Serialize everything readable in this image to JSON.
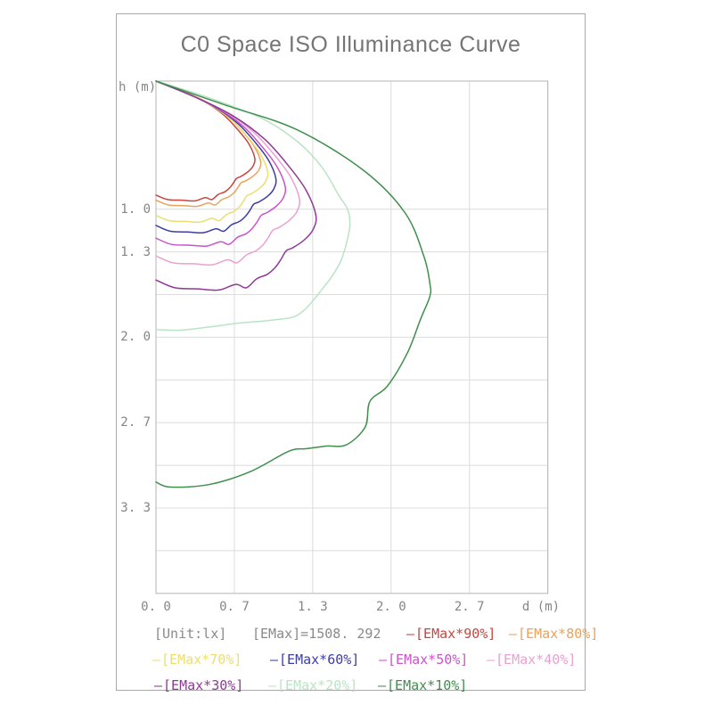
{
  "page": {
    "title": "C0 Space ISO Illuminance Curve"
  },
  "axes": {
    "x_label": "d (m)",
    "y_label": "h (m)",
    "x_ticks": [
      {
        "d": 0,
        "label": "0. 0"
      },
      {
        "d": 0.6667,
        "label": "0. 7"
      },
      {
        "d": 1.3333,
        "label": "1. 3"
      },
      {
        "d": 2,
        "label": "2. 0"
      },
      {
        "d": 2.6667,
        "label": "2. 7"
      }
    ],
    "y_ticks": [
      {
        "h": 1,
        "label": "1. 0"
      },
      {
        "h": 1.3333,
        "label": "1. 3"
      },
      {
        "h": 2,
        "label": "2. 0"
      },
      {
        "h": 2.6667,
        "label": "2. 7"
      },
      {
        "h": 3.3333,
        "label": "3. 3"
      }
    ]
  },
  "legend": {
    "unit_label": "[Unit:lx]",
    "emax_label": "[EMax]=1508. 292"
  },
  "colors": {
    "grid": "#dcdcdc",
    "plot_border": "#b5b5b5",
    "frame_border": "#a9a9a9",
    "text": "#858585",
    "title": "#757575"
  },
  "chart_data": {
    "type": "line",
    "subtype": "iso-illuminance-contours",
    "title": "C0 Space ISO Illuminance Curve",
    "xlabel": "d (m)",
    "ylabel": "h (m)",
    "unit": "lx",
    "emax_lux": 1508.292,
    "x_range": [
      0,
      3.3333
    ],
    "y_range": [
      0,
      4.0
    ],
    "y_inverted": true,
    "grid": true,
    "x_gridlines": [
      0,
      0.6667,
      1.3333,
      2,
      2.6667,
      3.3333
    ],
    "y_gridlines": [
      1,
      1.3333,
      1.6667,
      2,
      2.3333,
      2.6667,
      3,
      3.3333,
      3.6667
    ],
    "legend_position": "bottom",
    "curves": [
      {
        "name": "[EMax*90%]",
        "percent": 90,
        "color": "#c8453f",
        "points": [
          [
            0,
            0
          ],
          [
            0.202,
            0.07
          ],
          [
            0.403,
            0.155
          ],
          [
            0.571,
            0.26
          ],
          [
            0.697,
            0.38
          ],
          [
            0.79,
            0.49
          ],
          [
            0.84,
            0.6
          ],
          [
            0.825,
            0.665
          ],
          [
            0.78,
            0.71
          ],
          [
            0.72,
            0.745
          ],
          [
            0.685,
            0.76
          ],
          [
            0.655,
            0.8
          ],
          [
            0.625,
            0.835
          ],
          [
            0.585,
            0.865
          ],
          [
            0.53,
            0.885
          ],
          [
            0.475,
            0.925
          ],
          [
            0.42,
            0.91
          ],
          [
            0.33,
            0.935
          ],
          [
            0.22,
            0.93
          ],
          [
            0.1,
            0.925
          ],
          [
            0,
            0.89
          ]
        ]
      },
      {
        "name": "[EMax*80%]",
        "percent": 80,
        "color": "#e9a35b",
        "points": [
          [
            0,
            0
          ],
          [
            0.214,
            0.074
          ],
          [
            0.427,
            0.162
          ],
          [
            0.605,
            0.272
          ],
          [
            0.739,
            0.397
          ],
          [
            0.837,
            0.512
          ],
          [
            0.89,
            0.627
          ],
          [
            0.874,
            0.695
          ],
          [
            0.827,
            0.742
          ],
          [
            0.763,
            0.779
          ],
          [
            0.725,
            0.794
          ],
          [
            0.694,
            0.836
          ],
          [
            0.662,
            0.873
          ],
          [
            0.619,
            0.904
          ],
          [
            0.562,
            0.925
          ],
          [
            0.503,
            0.967
          ],
          [
            0.445,
            0.951
          ],
          [
            0.35,
            0.978
          ],
          [
            0.233,
            0.972
          ],
          [
            0.106,
            0.967
          ],
          [
            0,
            0.93
          ]
        ]
      },
      {
        "name": "[EMax*70%]",
        "percent": 70,
        "color": "#ecde72",
        "points": [
          [
            0,
            0
          ],
          [
            0.228,
            0.083
          ],
          [
            0.456,
            0.182
          ],
          [
            0.646,
            0.306
          ],
          [
            0.789,
            0.447
          ],
          [
            0.893,
            0.577
          ],
          [
            0.95,
            0.707
          ],
          [
            0.933,
            0.783
          ],
          [
            0.882,
            0.836
          ],
          [
            0.814,
            0.878
          ],
          [
            0.774,
            0.895
          ],
          [
            0.741,
            0.942
          ],
          [
            0.707,
            0.984
          ],
          [
            0.661,
            1.019
          ],
          [
            0.599,
            1.042
          ],
          [
            0.537,
            1.09
          ],
          [
            0.475,
            1.072
          ],
          [
            0.373,
            1.101
          ],
          [
            0.249,
            1.095
          ],
          [
            0.113,
            1.09
          ],
          [
            0,
            1.048
          ]
        ]
      },
      {
        "name": "[EMax*60%]",
        "percent": 60,
        "color": "#3d3da3",
        "points": [
          [
            0,
            0
          ],
          [
            0.245,
            0.089
          ],
          [
            0.49,
            0.196
          ],
          [
            0.694,
            0.329
          ],
          [
            0.847,
            0.481
          ],
          [
            0.959,
            0.62
          ],
          [
            1.02,
            0.76
          ],
          [
            1.002,
            0.842
          ],
          [
            0.948,
            0.9
          ],
          [
            0.874,
            0.944
          ],
          [
            0.831,
            0.962
          ],
          [
            0.796,
            1.013
          ],
          [
            0.759,
            1.058
          ],
          [
            0.71,
            1.096
          ],
          [
            0.644,
            1.121
          ],
          [
            0.576,
            1.172
          ],
          [
            0.51,
            1.153
          ],
          [
            0.401,
            1.184
          ],
          [
            0.267,
            1.178
          ],
          [
            0.121,
            1.172
          ],
          [
            0,
            1.127
          ]
        ]
      },
      {
        "name": "[EMax*50%]",
        "percent": 50,
        "color": "#cb54cb",
        "points": [
          [
            0,
            0
          ],
          [
            0.264,
            0.097
          ],
          [
            0.528,
            0.213
          ],
          [
            0.748,
            0.358
          ],
          [
            0.913,
            0.523
          ],
          [
            1.034,
            0.675
          ],
          [
            1.1,
            0.827
          ],
          [
            1.08,
            0.916
          ],
          [
            1.022,
            0.978
          ],
          [
            0.943,
            1.027
          ],
          [
            0.897,
            1.047
          ],
          [
            0.858,
            1.102
          ],
          [
            0.818,
            1.151
          ],
          [
            0.766,
            1.192
          ],
          [
            0.694,
            1.219
          ],
          [
            0.622,
            1.275
          ],
          [
            0.55,
            1.254
          ],
          [
            0.432,
            1.288
          ],
          [
            0.288,
            1.281
          ],
          [
            0.131,
            1.275
          ],
          [
            0,
            1.226
          ]
        ]
      },
      {
        "name": "[EMax*40%]",
        "percent": 40,
        "color": "#eba0d2",
        "points": [
          [
            0,
            0
          ],
          [
            0.293,
            0.108
          ],
          [
            0.586,
            0.237
          ],
          [
            0.83,
            0.399
          ],
          [
            1.013,
            0.582
          ],
          [
            1.147,
            0.751
          ],
          [
            1.22,
            0.92
          ],
          [
            1.198,
            1.02
          ],
          [
            1.133,
            1.089
          ],
          [
            1.046,
            1.143
          ],
          [
            0.994,
            1.165
          ],
          [
            0.952,
            1.227
          ],
          [
            0.908,
            1.281
          ],
          [
            0.849,
            1.326
          ],
          [
            0.77,
            1.357
          ],
          [
            0.689,
            1.419
          ],
          [
            0.61,
            1.395
          ],
          [
            0.479,
            1.434
          ],
          [
            0.32,
            1.426
          ],
          [
            0.145,
            1.419
          ],
          [
            0,
            1.365
          ]
        ]
      },
      {
        "name": "[EMax*30%]",
        "percent": 30,
        "color": "#8e3a96",
        "points": [
          [
            0,
            0
          ],
          [
            0.326,
            0.122
          ],
          [
            0.653,
            0.27
          ],
          [
            0.925,
            0.454
          ],
          [
            1.129,
            0.663
          ],
          [
            1.278,
            0.854
          ],
          [
            1.36,
            1.047
          ],
          [
            1.336,
            1.16
          ],
          [
            1.263,
            1.239
          ],
          [
            1.166,
            1.3
          ],
          [
            1.108,
            1.325
          ],
          [
            1.061,
            1.396
          ],
          [
            1.012,
            1.457
          ],
          [
            0.947,
            1.509
          ],
          [
            0.858,
            1.543
          ],
          [
            0.768,
            1.614
          ],
          [
            0.68,
            1.587
          ],
          [
            0.534,
            1.631
          ],
          [
            0.356,
            1.622
          ],
          [
            0.162,
            1.614
          ],
          [
            0,
            1.553
          ]
        ]
      },
      {
        "name": "[EMax*20%]",
        "percent": 20,
        "color": "#b9e5c4",
        "points": [
          [
            0,
            0
          ],
          [
            0.45,
            0.13
          ],
          [
            0.9,
            0.29
          ],
          [
            1.2,
            0.47
          ],
          [
            1.41,
            0.67
          ],
          [
            1.56,
            0.9
          ],
          [
            1.63,
            1.0
          ],
          [
            1.65,
            1.12
          ],
          [
            1.625,
            1.25
          ],
          [
            1.575,
            1.4
          ],
          [
            1.5,
            1.52
          ],
          [
            1.4,
            1.64
          ],
          [
            1.33,
            1.72
          ],
          [
            1.26,
            1.79
          ],
          [
            1.175,
            1.84
          ],
          [
            1.05,
            1.86
          ],
          [
            0.9,
            1.875
          ],
          [
            0.7,
            1.89
          ],
          [
            0.45,
            1.92
          ],
          [
            0.2,
            1.945
          ],
          [
            0,
            1.94
          ]
        ]
      },
      {
        "name": "[EMax*10%]",
        "percent": 10,
        "color": "#3f8f4d",
        "points": [
          [
            0,
            0
          ],
          [
            0.6,
            0.19
          ],
          [
            1.2,
            0.38
          ],
          [
            1.77,
            0.7
          ],
          [
            2.12,
            1.03
          ],
          [
            2.28,
            1.37
          ],
          [
            2.33,
            1.58
          ],
          [
            2.33,
            1.68
          ],
          [
            2.25,
            1.86
          ],
          [
            2.14,
            2.12
          ],
          [
            1.97,
            2.38
          ],
          [
            1.82,
            2.5
          ],
          [
            1.78,
            2.7
          ],
          [
            1.62,
            2.84
          ],
          [
            1.45,
            2.85
          ],
          [
            1.28,
            2.87
          ],
          [
            1.13,
            2.89
          ],
          [
            0.8,
            3.05
          ],
          [
            0.45,
            3.15
          ],
          [
            0.12,
            3.17
          ],
          [
            0,
            3.13
          ]
        ]
      }
    ]
  }
}
